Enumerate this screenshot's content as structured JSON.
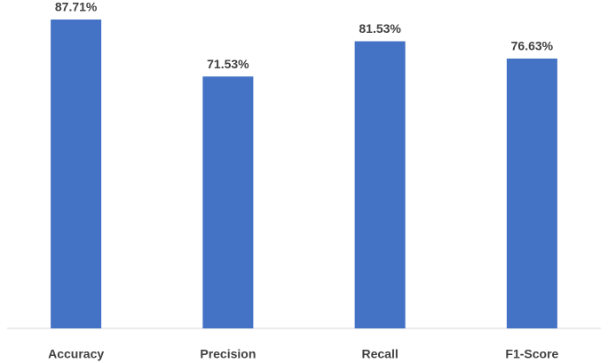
{
  "chart_data": {
    "type": "bar",
    "categories": [
      "Accuracy",
      "Precision",
      "Recall",
      "F1-Score"
    ],
    "values": [
      87.71,
      71.53,
      81.53,
      76.63
    ],
    "value_labels": [
      "87.71%",
      "71.53%",
      "81.53%",
      "76.63%"
    ],
    "color": "#4472c4"
  }
}
